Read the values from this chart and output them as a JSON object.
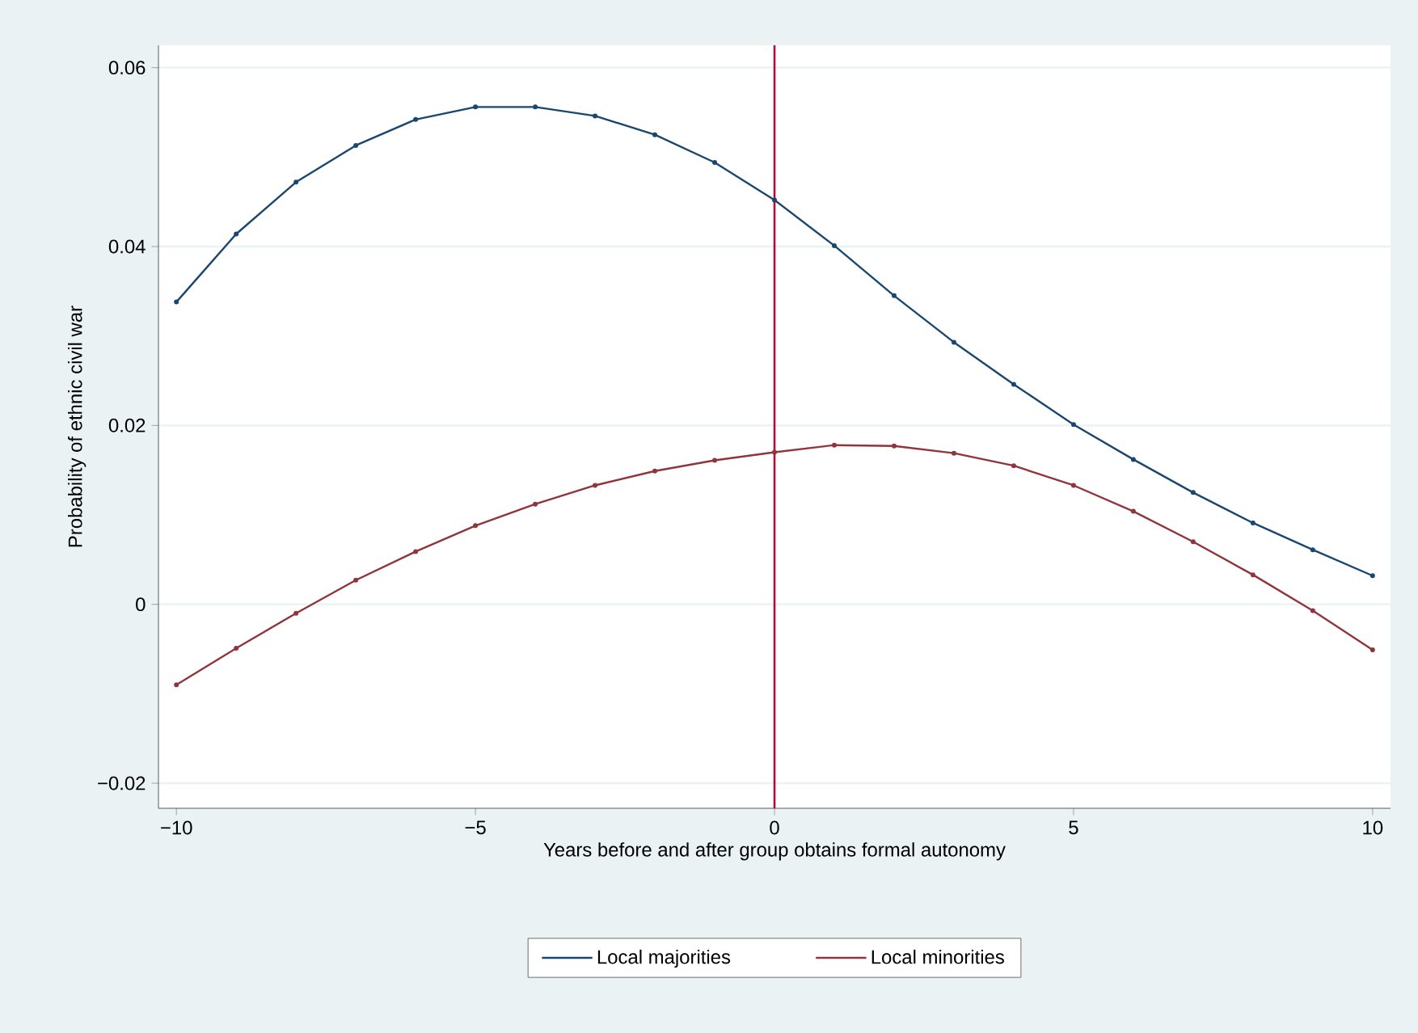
{
  "chart_data": {
    "type": "line",
    "xlabel": "Years before and after group obtains formal autonomy",
    "ylabel": "Probability of ethnic civil war",
    "x": [
      -10,
      -9,
      -8,
      -7,
      -6,
      -5,
      -4,
      -3,
      -2,
      -1,
      0,
      1,
      2,
      3,
      4,
      5,
      6,
      7,
      8,
      9,
      10
    ],
    "series": [
      {
        "name": "Local majorities",
        "color": "#1a476f",
        "values": [
          0.0338,
          0.0414,
          0.0472,
          0.0513,
          0.0542,
          0.0556,
          0.0556,
          0.0546,
          0.0525,
          0.0494,
          0.0452,
          0.0401,
          0.0345,
          0.0293,
          0.0246,
          0.0201,
          0.0162,
          0.0125,
          0.0091,
          0.0061,
          0.0032
        ]
      },
      {
        "name": "Local minorities",
        "color": "#90353b",
        "values": [
          -0.009,
          -0.0049,
          -0.001,
          0.0027,
          0.0059,
          0.0088,
          0.0112,
          0.0133,
          0.0149,
          0.0161,
          0.017,
          0.0178,
          0.0177,
          0.0169,
          0.0155,
          0.0133,
          0.0104,
          0.007,
          0.0033,
          -0.0007,
          -0.0051
        ]
      }
    ],
    "xlim": [
      -10.3,
      10.3
    ],
    "ylim": [
      -0.0228,
      0.0625
    ],
    "xticks": [
      {
        "value": -10,
        "label": "−10"
      },
      {
        "value": -5,
        "label": "−5"
      },
      0,
      5,
      10
    ],
    "yticks": [
      {
        "value": -0.02,
        "label": "−0.02"
      },
      0,
      0.02,
      0.04,
      0.06
    ],
    "ref_lines": [
      {
        "axis": "x",
        "value": 0,
        "color": "#c10534"
      }
    ],
    "grid": "y",
    "legend": "bottom",
    "marker": "circle",
    "line_style": "solid"
  }
}
